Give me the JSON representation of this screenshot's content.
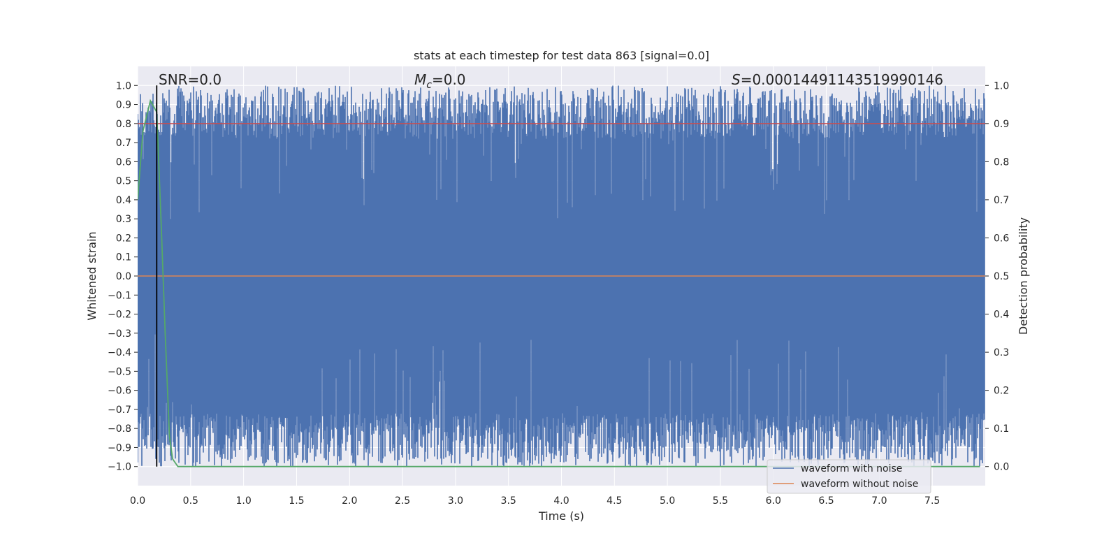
{
  "chart_data": {
    "type": "line",
    "title": "stats at each timestep for test data 863 [signal=0.0]",
    "xlabel": "Time (s)",
    "ylabel": "Whitened strain",
    "y2label": "Detection probability",
    "xlim": [
      0.0,
      8.0
    ],
    "ylim": [
      -1.1,
      1.1
    ],
    "y2lim": [
      -0.05,
      1.05
    ],
    "x_ticks": [
      0.0,
      0.5,
      1.0,
      1.5,
      2.0,
      2.5,
      3.0,
      3.5,
      4.0,
      4.5,
      5.0,
      5.5,
      6.0,
      6.5,
      7.0,
      7.5
    ],
    "x_tick_labels": [
      "0.0",
      "0.5",
      "1.0",
      "1.5",
      "2.0",
      "2.5",
      "3.0",
      "3.5",
      "4.0",
      "4.5",
      "5.0",
      "5.5",
      "6.0",
      "6.5",
      "7.0",
      "7.5"
    ],
    "y_ticks": [
      1.0,
      0.9,
      0.8,
      0.7,
      0.6,
      0.5,
      0.4,
      0.3,
      0.2,
      0.1,
      0.0,
      -0.1,
      -0.2,
      -0.3,
      -0.4,
      -0.5,
      -0.6,
      -0.7,
      -0.8,
      -0.9,
      -1.0
    ],
    "y_tick_labels": [
      "1.0",
      "0.9",
      "0.8",
      "0.7",
      "0.6",
      "0.5",
      "0.4",
      "0.3",
      "0.2",
      "0.1",
      "0.0",
      "−0.1",
      "−0.2",
      "−0.3",
      "−0.4",
      "−0.5",
      "−0.6",
      "−0.7",
      "−0.8",
      "−0.9",
      "−1.0"
    ],
    "y2_ticks": [
      1.0,
      0.9,
      0.8,
      0.7,
      0.6,
      0.5,
      0.4,
      0.3,
      0.2,
      0.1,
      0.0
    ],
    "y2_tick_labels": [
      "1.0",
      "0.9",
      "0.8",
      "0.7",
      "0.6",
      "0.5",
      "0.4",
      "0.3",
      "0.2",
      "0.1",
      "0.0"
    ],
    "grid": true,
    "legend_position": "lower-right",
    "colors": {
      "plot_bg": "#eaeaf2",
      "grid": "#ffffff",
      "noisy": "#4c72b0",
      "clean": "#dd8452",
      "probability": "#55a868",
      "threshold": "#c44e52",
      "marker": "#000000"
    },
    "series": [
      {
        "name": "waveform with noise",
        "axis": "left",
        "description_note": "dense noise spanning roughly −1.0 to 1.0 over 0–8 s"
      },
      {
        "name": "waveform without noise",
        "axis": "left",
        "x": [
          0.0,
          8.0
        ],
        "y": [
          0.0,
          0.0
        ]
      },
      {
        "axis": "right",
        "x": [
          0.0,
          0.05,
          0.12,
          0.18,
          0.22,
          0.26,
          0.3,
          0.33,
          0.38,
          0.45,
          1.0,
          2.0,
          3.0,
          4.0,
          5.0,
          6.0,
          7.0,
          7.95
        ],
        "y": [
          0.7,
          0.88,
          0.96,
          0.93,
          0.65,
          0.35,
          0.08,
          0.02,
          0.0,
          0.0,
          0.0,
          0.0,
          0.0,
          0.0,
          0.0,
          0.0,
          0.0,
          0.0
        ]
      },
      {
        "axis": "right",
        "x": [
          0.0,
          8.0
        ],
        "y": [
          0.9,
          0.9
        ]
      }
    ],
    "vertical_marker_x": 0.18,
    "annotations": {
      "snr": "SNR=0.0",
      "mc_symbol": "M",
      "mc_subscript": "c",
      "mc_value": "=0.0",
      "s_symbol": "S",
      "s_value": "=0.00014491143519990146"
    }
  }
}
